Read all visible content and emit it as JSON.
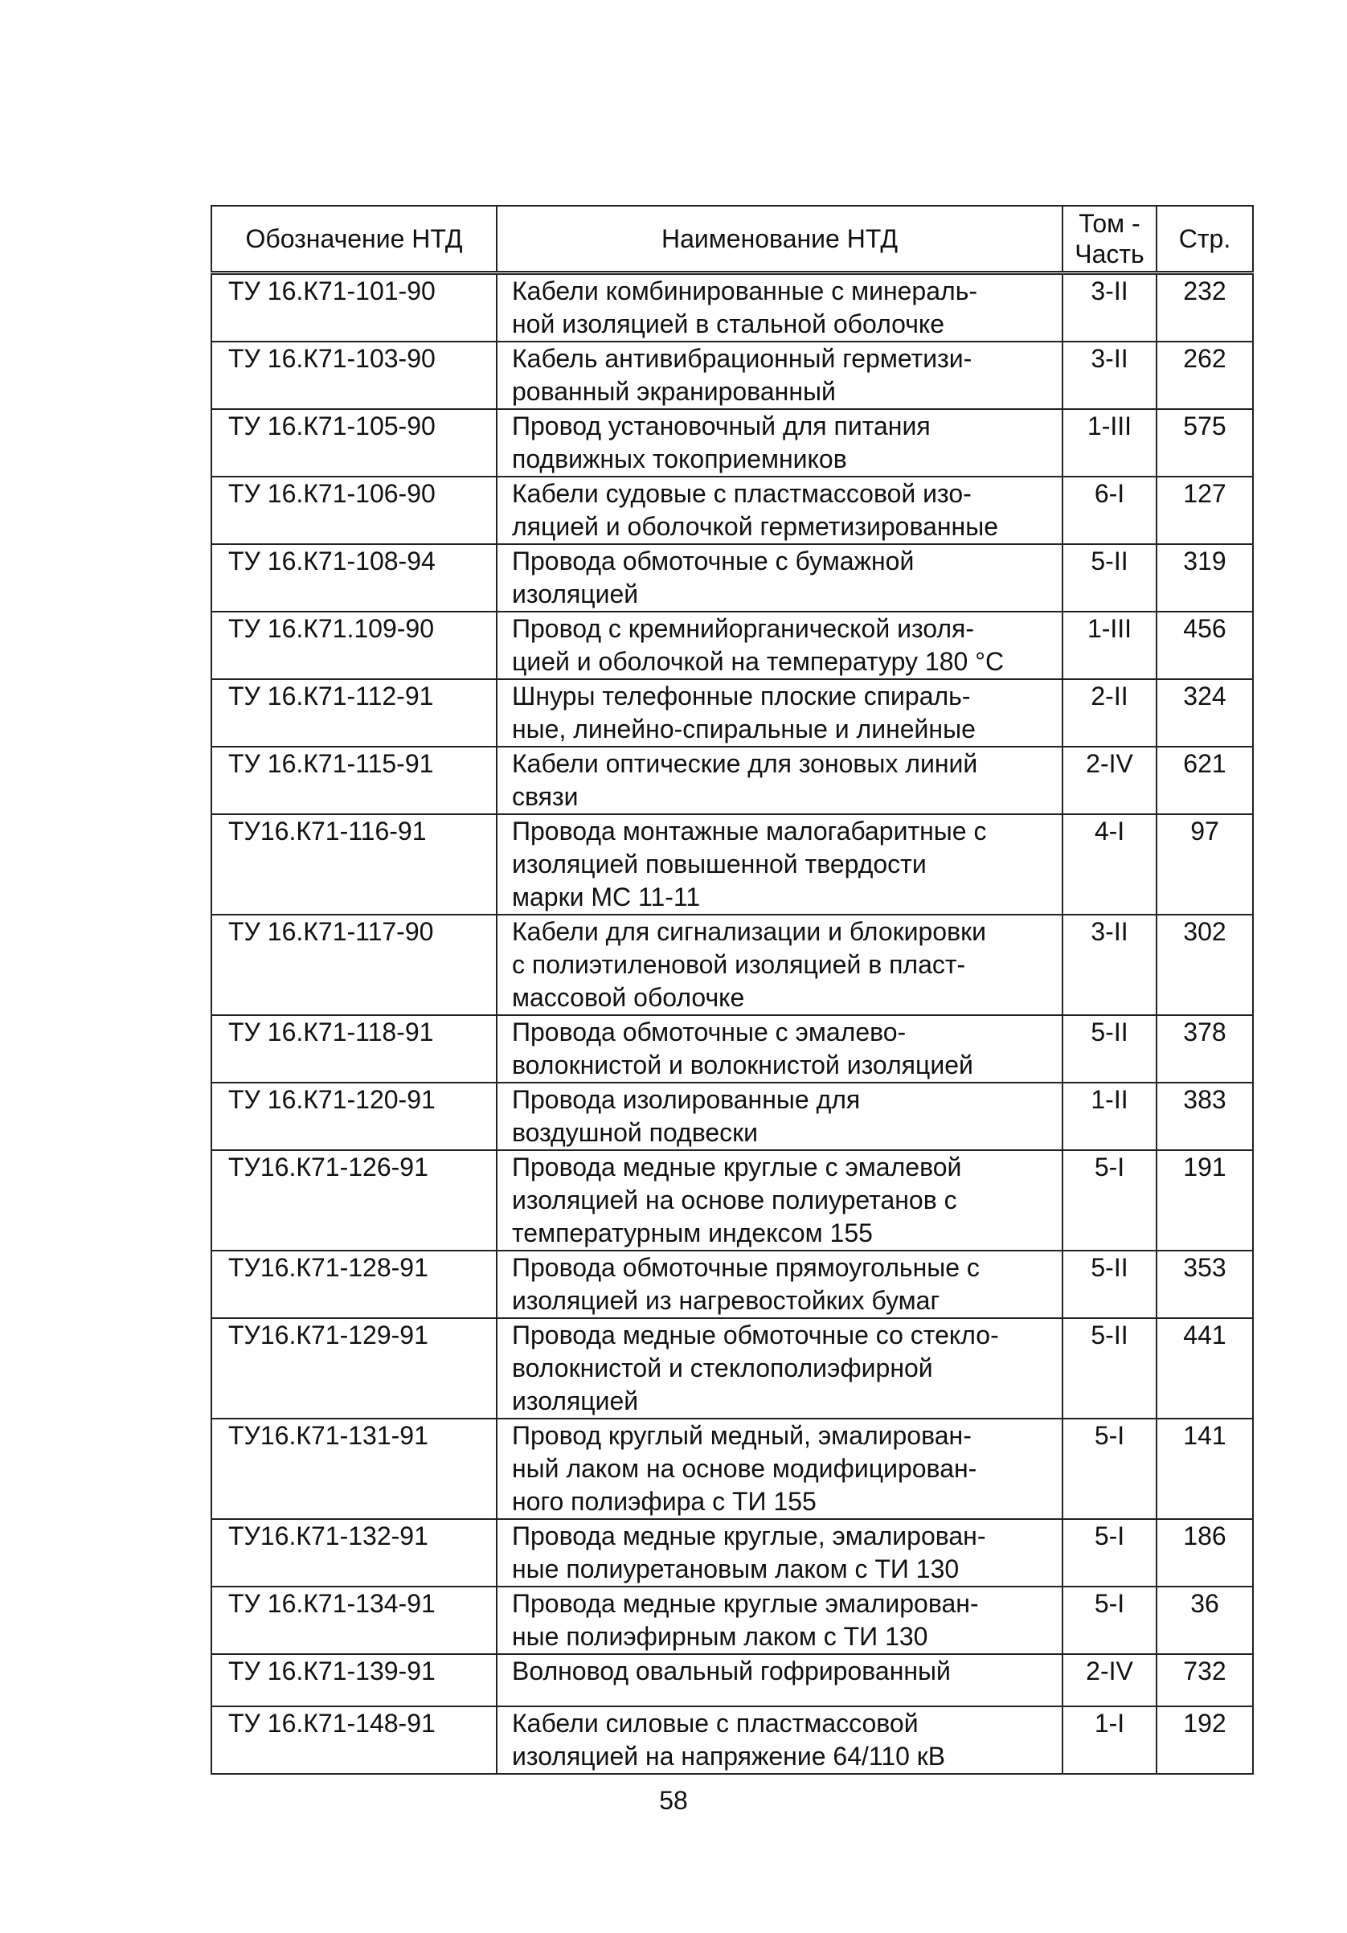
{
  "table": {
    "headers": {
      "code": "Обозначение НТД",
      "name": "Наименование НТД",
      "volume": [
        "Том -",
        "Часть"
      ],
      "page": "Стр."
    },
    "rows": [
      {
        "code": "ТУ 16.К71-101-90",
        "name": [
          "Кабели комбинированные с минераль-",
          "ной изоляцией в стальной оболочке"
        ],
        "volume": "3-II",
        "page": "232"
      },
      {
        "code": "ТУ 16.К71-103-90",
        "name": [
          "Кабель антивибрационный герметизи-",
          "рованный экранированный"
        ],
        "volume": "3-II",
        "page": "262"
      },
      {
        "code": "ТУ 16.К71-105-90",
        "name": [
          "Провод установочный для питания",
          "подвижных токоприемников"
        ],
        "volume": "1-III",
        "page": "575"
      },
      {
        "code": "ТУ 16.К71-106-90",
        "name": [
          "Кабели судовые с пластмассовой изо-",
          "ляцией и оболочкой герметизированные"
        ],
        "volume": "6-I",
        "page": "127"
      },
      {
        "code": "ТУ 16.К71-108-94",
        "name": [
          "Провода обмоточные с бумажной",
          "изоляцией"
        ],
        "volume": "5-II",
        "page": "319"
      },
      {
        "code": "ТУ 16.К71.109-90",
        "name": [
          "Провод с кремнийорганической изоля-",
          "цией и оболочкой на температуру 180 °С"
        ],
        "volume": "1-III",
        "page": "456"
      },
      {
        "code": "ТУ 16.К71-112-91",
        "name": [
          "Шнуры телефонные плоские спираль-",
          "ные, линейно-спиральные и линейные"
        ],
        "volume": "2-II",
        "page": "324"
      },
      {
        "code": "ТУ 16.К71-115-91",
        "name": [
          "Кабели оптические для зоновых линий",
          "связи"
        ],
        "volume": "2-IV",
        "page": "621"
      },
      {
        "code": "ТУ16.К71-116-91",
        "name": [
          "Провода монтажные малогабаритные с",
          "изоляцией повышенной твердости",
          "марки МС 11-11"
        ],
        "volume": "4-I",
        "page": "97"
      },
      {
        "code": "ТУ 16.К71-117-90",
        "name": [
          "Кабели для сигнализации и блокировки",
          "с полиэтиленовой изоляцией в пласт-",
          "массовой оболочке"
        ],
        "volume": "3-II",
        "page": "302"
      },
      {
        "code": "ТУ 16.К71-118-91",
        "name": [
          "Провода обмоточные с эмалево-",
          "волокнистой и волокнистой изоляцией"
        ],
        "volume": "5-II",
        "page": "378"
      },
      {
        "code": "ТУ 16.К71-120-91",
        "name": [
          "Провода изолированные для",
          "воздушной подвески"
        ],
        "volume": "1-II",
        "page": "383"
      },
      {
        "code": "ТУ16.К71-126-91",
        "name": [
          "Провода медные круглые с эмалевой",
          "изоляцией на основе полиуретанов с",
          "температурным индексом 155"
        ],
        "volume": "5-I",
        "page": "191"
      },
      {
        "code": "ТУ16.К71-128-91",
        "name": [
          "Провода обмоточные прямоугольные с",
          "изоляцией из нагревостойких бумаг"
        ],
        "volume": "5-II",
        "page": "353"
      },
      {
        "code": "ТУ16.К71-129-91",
        "name": [
          "Провода медные обмоточные со стекло-",
          "волокнистой и стеклополиэфирной",
          "изоляцией"
        ],
        "volume": "5-II",
        "page": "441"
      },
      {
        "code": "ТУ16.К71-131-91",
        "name": [
          "Провод круглый медный, эмалирован-",
          "ный лаком на основе модифицирован-",
          "ного полиэфира с ТИ 155"
        ],
        "volume": "5-I",
        "page": "141"
      },
      {
        "code": "ТУ16.К71-132-91",
        "name": [
          "Провода медные круглые, эмалирован-",
          "ные полиуретановым лаком с ТИ 130"
        ],
        "volume": "5-I",
        "page": "186"
      },
      {
        "code": "ТУ 16.К71-134-91",
        "name": [
          "Провода медные круглые эмалирован-",
          "ные полиэфирным лаком с ТИ 130"
        ],
        "volume": "5-I",
        "page": "36"
      },
      {
        "code": "ТУ 16.К71-139-91",
        "name": [
          "Волновод овальный гофрированный"
        ],
        "volume": "2-IV",
        "page": "732"
      },
      {
        "code": "ТУ 16.К71-148-91",
        "name": [
          "Кабели силовые с пластмассовой",
          "изоляцией на напряжение 64/110 кВ"
        ],
        "volume": "1-I",
        "page": "192"
      }
    ]
  },
  "page_number": "58"
}
